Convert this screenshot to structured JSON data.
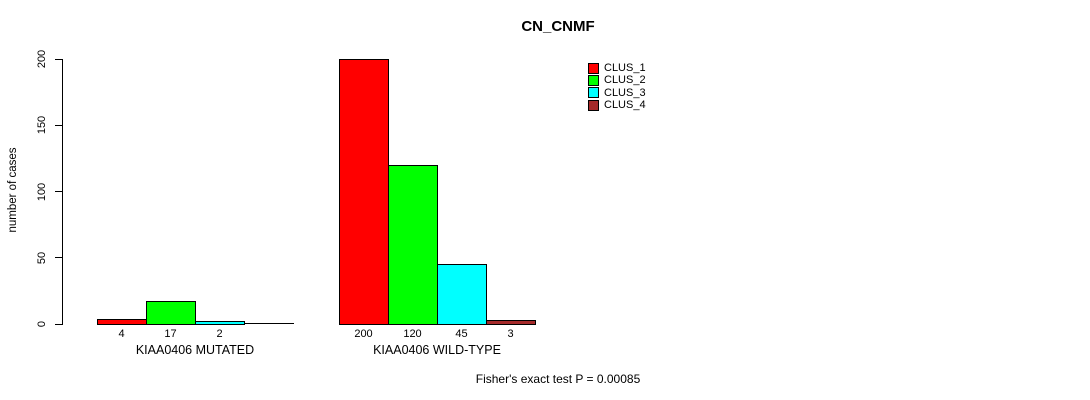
{
  "title": "CN_CNMF",
  "ylabel": "number of cases",
  "footer": "Fisher's exact test P = 0.00085",
  "legend": {
    "items": [
      {
        "label": "CLUS_1",
        "color": "#FF0000"
      },
      {
        "label": "CLUS_2",
        "color": "#00FF00"
      },
      {
        "label": "CLUS_3",
        "color": "#00FFFF"
      },
      {
        "label": "CLUS_4",
        "color": "#A52A2A"
      }
    ]
  },
  "chart_data": {
    "type": "bar",
    "title": "CN_CNMF",
    "ylabel": "number of cases",
    "xlabel": "",
    "ylim": [
      0,
      200
    ],
    "yticks": [
      0,
      50,
      100,
      150,
      200
    ],
    "grid": false,
    "legend_position": "top-right-outside",
    "categories": [
      "KIAA0406 MUTATED",
      "KIAA0406 WILD-TYPE"
    ],
    "series": [
      {
        "name": "CLUS_1",
        "color": "#FF0000",
        "values": [
          4,
          200
        ]
      },
      {
        "name": "CLUS_2",
        "color": "#00FF00",
        "values": [
          17,
          120
        ]
      },
      {
        "name": "CLUS_3",
        "color": "#00FFFF",
        "values": [
          2,
          45
        ]
      },
      {
        "name": "CLUS_4",
        "color": "#A52A2A",
        "values": [
          0,
          3
        ]
      }
    ],
    "value_labels": [
      [
        "4",
        "17",
        "2",
        ""
      ],
      [
        "200",
        "120",
        "45",
        "3"
      ]
    ],
    "annotation": "Fisher's exact test P = 0.00085"
  }
}
